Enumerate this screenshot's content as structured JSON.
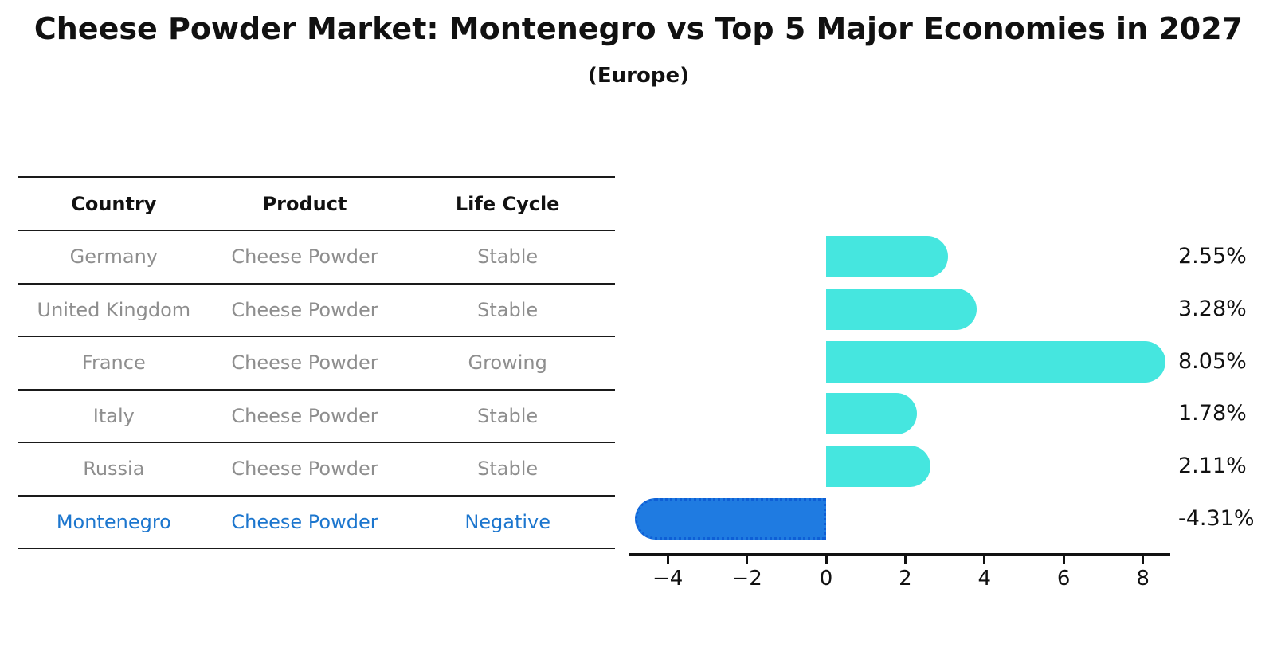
{
  "header": {
    "title": "Cheese Powder Market: Montenegro vs Top 5 Major Economies in 2027",
    "subtitle": "(Europe)"
  },
  "table": {
    "columns": [
      "Country",
      "Product",
      "Life Cycle"
    ],
    "rows": [
      {
        "country": "Germany",
        "product": "Cheese Powder",
        "life_cycle": "Stable",
        "highlight": false
      },
      {
        "country": "United Kingdom",
        "product": "Cheese Powder",
        "life_cycle": "Stable",
        "highlight": false
      },
      {
        "country": "France",
        "product": "Cheese Powder",
        "life_cycle": "Growing",
        "highlight": false
      },
      {
        "country": "Italy",
        "product": "Cheese Powder",
        "life_cycle": "Stable",
        "highlight": false
      },
      {
        "country": "Russia",
        "product": "Cheese Powder",
        "life_cycle": "Stable",
        "highlight": false
      },
      {
        "country": "Montenegro",
        "product": "Cheese Powder",
        "life_cycle": "Negative",
        "highlight": true
      }
    ]
  },
  "chart_data": {
    "type": "bar",
    "orientation": "horizontal",
    "title": "Cheese Powder Market: Montenegro vs Top 5 Major Economies in 2027 (Europe)",
    "categories": [
      "Germany",
      "United Kingdom",
      "France",
      "Italy",
      "Russia",
      "Montenegro"
    ],
    "values": [
      2.55,
      3.28,
      8.05,
      1.78,
      2.11,
      -4.31
    ],
    "bar_labels": [
      "2.55%",
      "3.28%",
      "8.05%",
      "1.78%",
      "2.11%",
      "-4.31%"
    ],
    "highlight_index": 5,
    "x_ticks": [
      {
        "value": -4,
        "label": "−4"
      },
      {
        "value": -2,
        "label": "−2"
      },
      {
        "value": 0,
        "label": "0"
      },
      {
        "value": 2,
        "label": "2"
      },
      {
        "value": 4,
        "label": "4"
      },
      {
        "value": 6,
        "label": "6"
      },
      {
        "value": 8,
        "label": "8"
      }
    ],
    "xlim": [
      -5.0,
      8.7
    ],
    "grid": false,
    "legend_position": "none",
    "colors": {
      "positive_bar": "#45E6DF",
      "negative_bar": "#1F7BE1",
      "negative_bar_dots": "#0E5FD6",
      "highlight_text": "#1C76CE",
      "table_text": "#8E8E8E",
      "heading_text": "#111111",
      "line": "#1A1A1A"
    }
  }
}
